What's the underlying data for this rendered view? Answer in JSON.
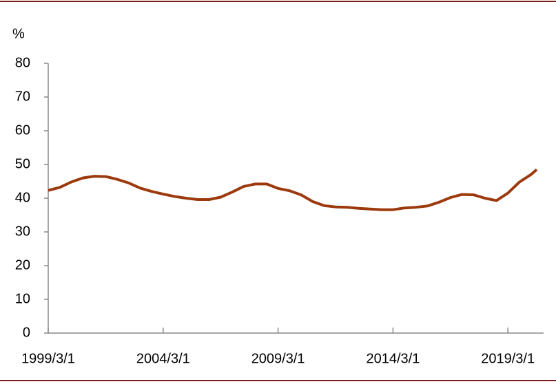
{
  "chart_data": {
    "type": "line",
    "y_label": "%",
    "x": [
      "1999/3/1",
      "1999/9/1",
      "2000/3/1",
      "2000/9/1",
      "2001/3/1",
      "2001/9/1",
      "2002/3/1",
      "2002/9/1",
      "2003/3/1",
      "2003/9/1",
      "2004/3/1",
      "2004/9/1",
      "2005/3/1",
      "2005/9/1",
      "2006/3/1",
      "2006/9/1",
      "2007/3/1",
      "2007/9/1",
      "2008/3/1",
      "2008/9/1",
      "2009/3/1",
      "2009/9/1",
      "2010/3/1",
      "2010/9/1",
      "2011/3/1",
      "2011/9/1",
      "2012/3/1",
      "2012/9/1",
      "2013/3/1",
      "2013/9/1",
      "2014/3/1",
      "2014/9/1",
      "2015/3/1",
      "2015/9/1",
      "2016/3/1",
      "2016/9/1",
      "2017/3/1",
      "2017/9/1",
      "2018/3/1",
      "2018/9/1",
      "2019/3/1",
      "2019/9/1",
      "2020/3/1",
      "2020/6/1"
    ],
    "values": [
      42.3,
      43.2,
      44.8,
      46.0,
      46.5,
      46.4,
      45.6,
      44.5,
      43.0,
      42.0,
      41.2,
      40.5,
      40.0,
      39.6,
      39.6,
      40.3,
      41.8,
      43.5,
      44.2,
      44.2,
      42.9,
      42.2,
      41.0,
      39.0,
      37.8,
      37.4,
      37.3,
      37.0,
      36.8,
      36.6,
      36.6,
      37.1,
      37.3,
      37.7,
      38.8,
      40.2,
      41.1,
      41.0,
      40.0,
      39.3,
      41.5,
      44.8,
      47.0,
      48.5
    ],
    "color": "#9c3a0e",
    "xlim": [
      "1999/3/1",
      "2020/6/1"
    ],
    "xticks": [
      "1999/3/1",
      "2004/3/1",
      "2009/3/1",
      "2014/3/1",
      "2019/3/1"
    ],
    "ylim": [
      0,
      80
    ],
    "yticks": [
      0,
      10,
      20,
      30,
      40,
      50,
      60,
      70,
      80
    ],
    "grid": false
  }
}
